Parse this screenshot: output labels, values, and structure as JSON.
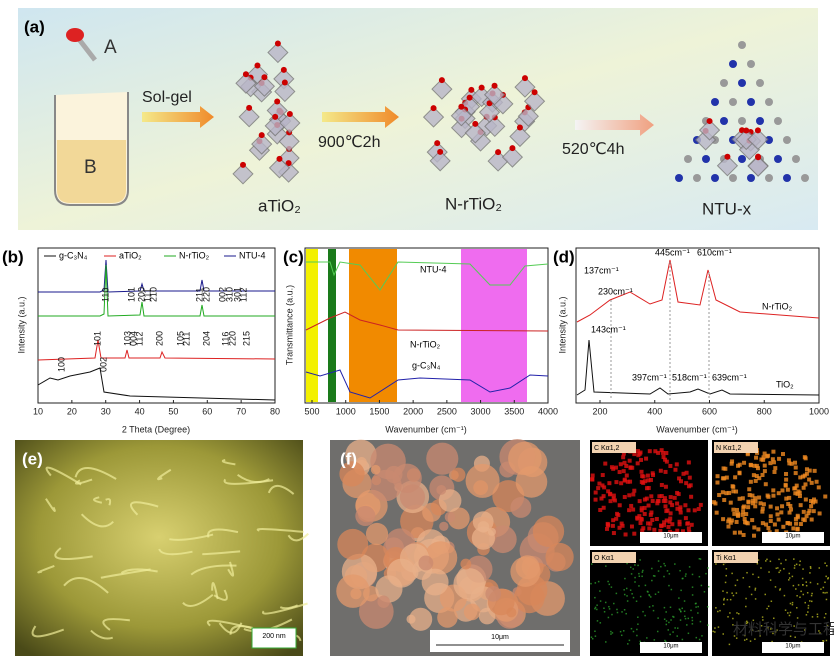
{
  "panel_a": {
    "label": "(a)",
    "reagent_a": "A",
    "reagent_b": "B",
    "step_1": "Sol-gel",
    "step_2": "900℃2h",
    "step_3": "520℃4h",
    "product_1": "aTiO₂",
    "product_2": "N-rTiO₂",
    "product_3": "NTU-x"
  },
  "panel_b": {
    "label": "(b)",
    "legend": [
      "g-C₃N₄",
      "aTiO₂",
      "N-rTiO₂",
      "NTU-4"
    ],
    "y_label": "Intensity (a.u.)",
    "x_label": "2 Theta (Degree)",
    "x_ticks": [
      10,
      20,
      30,
      40,
      50,
      60,
      70,
      80
    ],
    "rutile_peaks": [
      "110",
      "101",
      "200",
      "111",
      "210",
      "211",
      "220",
      "002",
      "310",
      "301",
      "112"
    ],
    "anatase_peaks": [
      "101",
      "103",
      "004",
      "112",
      "200",
      "105",
      "211",
      "204",
      "116",
      "220",
      "215"
    ],
    "g_c3n4_peaks": [
      "100",
      "002"
    ]
  },
  "panel_c": {
    "label": "(c)",
    "y_label": "Transmittance (a.u.)",
    "x_label": "Wavenumber (cm⁻¹)",
    "x_ticks": [
      500,
      1000,
      1500,
      2000,
      2500,
      3000,
      3500,
      4000
    ],
    "curves": [
      "NTU-4",
      "N-rTiO₂",
      "g-C₃N₄"
    ]
  },
  "panel_d": {
    "label": "(d)",
    "y_label": "Intensity (a.u.)",
    "x_label": "Wavenumber (cm⁻¹)",
    "x_ticks": [
      200,
      400,
      600,
      800,
      1000
    ],
    "peaks": [
      "137cm⁻¹",
      "230cm⁻¹",
      "445cm⁻¹",
      "610cm⁻¹",
      "143cm⁻¹",
      "397cm⁻¹",
      "518cm⁻¹",
      "639cm⁻¹"
    ],
    "curves": [
      "N-rTiO₂",
      "TiO₂"
    ]
  },
  "panel_e": {
    "label": "(e)",
    "scale": "200 nm"
  },
  "panel_f": {
    "label": "(f)",
    "scale": "10μm",
    "maps": [
      {
        "element": "C Kα1,2",
        "scale": "10μm"
      },
      {
        "element": "N Kα1,2",
        "scale": "10μm"
      },
      {
        "element": "O Kα1",
        "scale": "10μm"
      },
      {
        "element": "Ti Kα1",
        "scale": "10μm"
      }
    ]
  },
  "watermark": "材料科学与工程"
}
